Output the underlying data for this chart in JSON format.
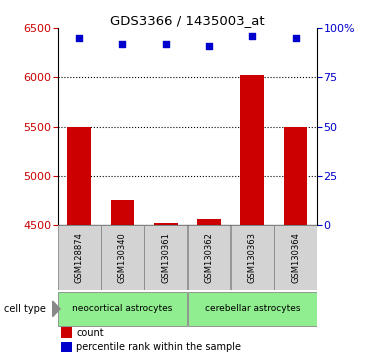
{
  "title": "GDS3366 / 1435003_at",
  "samples": [
    "GSM128874",
    "GSM130340",
    "GSM130361",
    "GSM130362",
    "GSM130363",
    "GSM130364"
  ],
  "counts": [
    5500,
    4750,
    4515,
    4560,
    6020,
    5500
  ],
  "percentiles": [
    95,
    92,
    92,
    91,
    96,
    95
  ],
  "ylim_left": [
    4500,
    6500
  ],
  "ylim_right": [
    0,
    100
  ],
  "yticks_left": [
    4500,
    5000,
    5500,
    6000,
    6500
  ],
  "yticks_right": [
    0,
    25,
    50,
    75,
    100
  ],
  "bar_color": "#cc0000",
  "dot_color": "#0000cc",
  "bar_width": 0.55,
  "cell_types": [
    {
      "label": "neocortical astrocytes",
      "color": "#90ee90"
    },
    {
      "label": "cerebellar astrocytes",
      "color": "#90ee90"
    }
  ],
  "cell_type_label": "cell type",
  "legend_count_label": "count",
  "legend_percentile_label": "percentile rank within the sample",
  "tick_color_left": "#cc0000",
  "tick_color_right": "#0000cc",
  "sample_area_bg": "#d3d3d3",
  "white": "#ffffff"
}
